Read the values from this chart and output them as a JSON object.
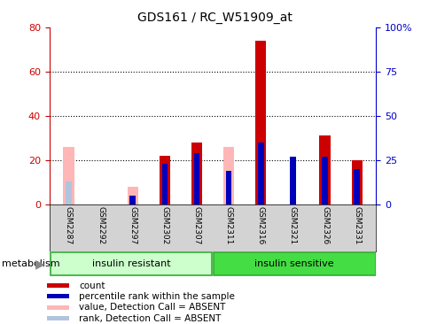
{
  "title": "GDS161 / RC_W51909_at",
  "samples": [
    "GSM2287",
    "GSM2292",
    "GSM2297",
    "GSM2302",
    "GSM2307",
    "GSM2311",
    "GSM2316",
    "GSM2321",
    "GSM2326",
    "GSM2331"
  ],
  "count_red": [
    0,
    0,
    0,
    22,
    28,
    0,
    74,
    0,
    31,
    20
  ],
  "percentile_blue": [
    0,
    0,
    5,
    23,
    29,
    19,
    35,
    27,
    27,
    20
  ],
  "absent_value_pink": [
    26,
    0,
    8,
    0,
    0,
    26,
    0,
    0,
    0,
    0
  ],
  "absent_rank_lightblue": [
    13,
    0,
    4,
    0,
    0,
    0,
    0,
    0,
    0,
    0
  ],
  "ylim_left": [
    0,
    80
  ],
  "ylim_right": [
    0,
    100
  ],
  "yticks_left": [
    0,
    20,
    40,
    60,
    80
  ],
  "ytick_labels_right": [
    "0",
    "25",
    "50",
    "75",
    "100%"
  ],
  "left_axis_color": "#cc0000",
  "right_axis_color": "#0000cc",
  "legend_items": [
    {
      "label": "count",
      "color": "#cc0000"
    },
    {
      "label": "percentile rank within the sample",
      "color": "#0000bb"
    },
    {
      "label": "value, Detection Call = ABSENT",
      "color": "#ffb6b6"
    },
    {
      "label": "rank, Detection Call = ABSENT",
      "color": "#b0c4de"
    }
  ],
  "bar_width": 0.4,
  "group_label": "metabolism",
  "group1_label": "insulin resistant",
  "group1_color": "#ccffcc",
  "group2_label": "insulin sensitive",
  "group2_color": "#44dd44"
}
